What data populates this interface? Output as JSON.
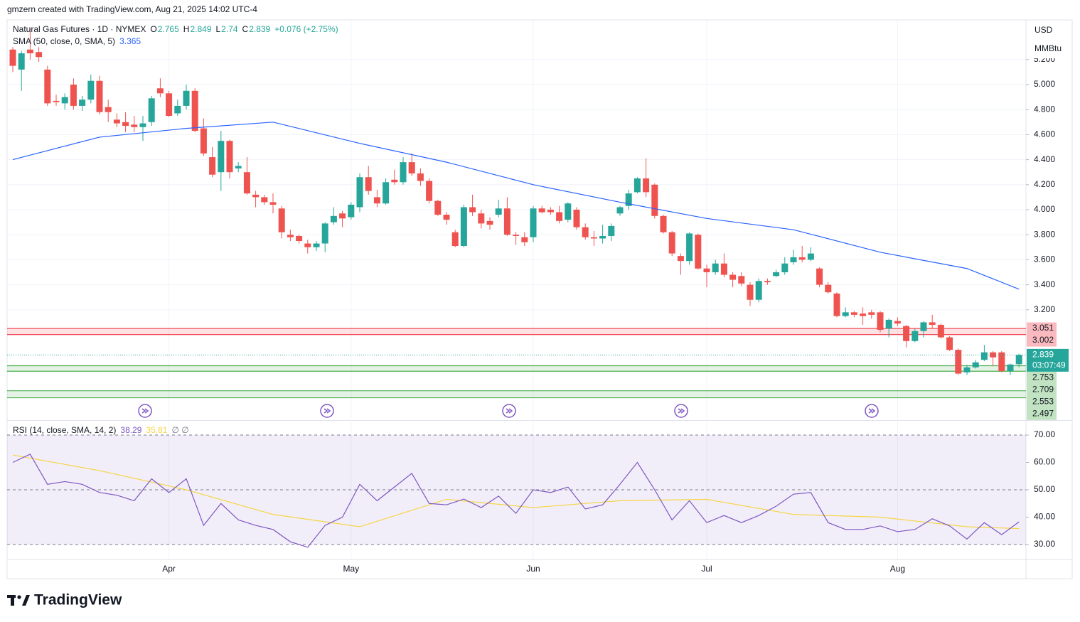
{
  "chart_data": {
    "type": "candlestick",
    "attribution": "gmzern created with TradingView.com, Aug 21, 2025 14:02 UTC-4",
    "title": "Natural Gas Futures · 1D · NYMEX",
    "ohlc_keys": [
      "O",
      "H",
      "L",
      "C"
    ],
    "change": "+0.076 (+2.75%)",
    "currency": "USD",
    "unit": "MMBtu",
    "countdown": "03:07:49",
    "logo": "TradingView",
    "up_color": "#26a69a",
    "down_color": "#ef5350",
    "categories": [
      null,
      null,
      null,
      null,
      null,
      null,
      null,
      null,
      null,
      null,
      null,
      null,
      null,
      null,
      null,
      null,
      null,
      null,
      "Apr",
      null,
      null,
      null,
      null,
      null,
      null,
      null,
      null,
      null,
      null,
      null,
      null,
      null,
      null,
      null,
      null,
      null,
      null,
      null,
      null,
      "May",
      null,
      null,
      null,
      null,
      null,
      null,
      null,
      null,
      null,
      null,
      null,
      null,
      null,
      null,
      null,
      null,
      null,
      null,
      null,
      null,
      "Jun",
      null,
      null,
      null,
      null,
      null,
      null,
      null,
      null,
      null,
      null,
      null,
      null,
      null,
      null,
      null,
      null,
      null,
      null,
      null,
      "Jul",
      null,
      null,
      null,
      null,
      null,
      null,
      null,
      null,
      null,
      null,
      null,
      null,
      null,
      null,
      null,
      null,
      null,
      null,
      null,
      null,
      null,
      "Aug",
      null,
      null,
      null,
      null,
      null,
      null,
      null,
      null,
      null,
      null,
      null,
      null,
      null,
      null
    ],
    "open": [
      5.28,
      5.12,
      5.28,
      5.26,
      5.12,
      4.87,
      4.85,
      5.0,
      4.83,
      4.88,
      5.03,
      4.82,
      4.72,
      4.7,
      4.68,
      4.66,
      4.7,
      4.97,
      4.93,
      4.77,
      4.83,
      4.95,
      4.65,
      4.42,
      4.3,
      4.55,
      4.33,
      4.3,
      4.12,
      4.1,
      4.06,
      4.01,
      3.8,
      3.79,
      3.73,
      3.7,
      3.73,
      3.9,
      3.97,
      3.94,
      4.02,
      4.26,
      4.1,
      4.05,
      4.24,
      4.22,
      4.38,
      4.29,
      4.23,
      4.07,
      3.96,
      3.82,
      3.71,
      4.02,
      3.97,
      3.91,
      3.96,
      4.01,
      3.8,
      3.78,
      3.78,
      4.01,
      4.0,
      3.98,
      3.92,
      4.0,
      3.86,
      3.78,
      3.77,
      3.79,
      3.97,
      4.03,
      4.14,
      4.25,
      4.2,
      3.95,
      3.82,
      3.63,
      3.59,
      3.8,
      3.53,
      3.5,
      3.57,
      3.48,
      3.47,
      3.4,
      3.28,
      3.43,
      3.47,
      3.5,
      3.58,
      3.62,
      3.6,
      3.53,
      3.4,
      3.33,
      3.15,
      3.18,
      3.17,
      3.18,
      3.18,
      3.05,
      3.11,
      3.07,
      2.95,
      3.03,
      3.1,
      3.08,
      2.98,
      2.88,
      2.7,
      2.74,
      2.8,
      2.86,
      2.86,
      2.71,
      2.765
    ],
    "high": [
      5.3,
      5.27,
      5.45,
      5.3,
      5.15,
      4.92,
      4.93,
      5.05,
      4.91,
      5.08,
      5.07,
      4.88,
      4.77,
      4.78,
      4.75,
      4.75,
      4.91,
      5.05,
      4.95,
      4.88,
      5.0,
      4.97,
      4.73,
      4.5,
      4.63,
      4.56,
      4.38,
      4.42,
      4.15,
      4.12,
      4.13,
      4.03,
      3.84,
      3.8,
      3.76,
      3.75,
      3.9,
      4.02,
      3.99,
      4.06,
      4.29,
      4.35,
      4.16,
      4.25,
      4.32,
      4.42,
      4.45,
      4.33,
      4.25,
      4.08,
      3.98,
      3.84,
      4.04,
      4.12,
      4.0,
      3.94,
      4.08,
      4.1,
      3.82,
      3.82,
      4.03,
      4.03,
      4.02,
      4.03,
      4.06,
      4.02,
      3.89,
      3.83,
      3.88,
      3.89,
      4.03,
      4.16,
      4.26,
      4.41,
      4.21,
      3.96,
      3.83,
      3.65,
      3.82,
      3.81,
      3.56,
      3.6,
      3.65,
      3.5,
      3.5,
      3.42,
      3.45,
      3.45,
      3.52,
      3.62,
      3.68,
      3.71,
      3.7,
      3.54,
      3.42,
      3.34,
      3.22,
      3.19,
      3.22,
      3.2,
      3.19,
      3.13,
      3.14,
      3.08,
      3.05,
      3.11,
      3.16,
      3.09,
      2.99,
      2.89,
      2.76,
      2.8,
      2.92,
      2.87,
      2.87,
      2.77,
      2.849
    ],
    "low": [
      5.1,
      4.95,
      5.2,
      5.18,
      4.83,
      4.83,
      4.8,
      4.8,
      4.79,
      4.85,
      4.76,
      4.7,
      4.66,
      4.62,
      4.62,
      4.55,
      4.67,
      4.9,
      4.74,
      4.75,
      4.8,
      4.62,
      4.43,
      4.26,
      4.15,
      4.25,
      4.3,
      4.12,
      4.02,
      4.04,
      3.97,
      3.77,
      3.75,
      3.73,
      3.65,
      3.67,
      3.66,
      3.88,
      3.86,
      3.92,
      3.98,
      4.12,
      4.02,
      4.04,
      4.2,
      4.2,
      4.27,
      4.19,
      4.05,
      3.95,
      3.88,
      3.7,
      3.7,
      3.95,
      3.85,
      3.84,
      3.94,
      3.79,
      3.72,
      3.71,
      3.74,
      3.97,
      3.96,
      3.89,
      3.9,
      3.84,
      3.76,
      3.71,
      3.73,
      3.75,
      3.95,
      4.0,
      4.13,
      4.1,
      3.93,
      3.81,
      3.63,
      3.48,
      3.56,
      3.52,
      3.38,
      3.48,
      3.46,
      3.38,
      3.39,
      3.23,
      3.26,
      3.4,
      3.46,
      3.48,
      3.56,
      3.58,
      3.59,
      3.38,
      3.33,
      3.14,
      3.14,
      3.14,
      3.08,
      3.13,
      3.02,
      2.98,
      3.07,
      2.9,
      2.94,
      2.98,
      3.05,
      2.97,
      2.87,
      2.68,
      2.68,
      2.73,
      2.79,
      2.75,
      2.7,
      2.68,
      2.74
    ],
    "close": [
      5.15,
      5.25,
      5.25,
      5.22,
      4.85,
      4.86,
      4.9,
      4.83,
      4.88,
      5.03,
      4.78,
      4.78,
      4.69,
      4.67,
      4.66,
      4.69,
      4.89,
      4.93,
      4.75,
      4.83,
      4.95,
      4.63,
      4.45,
      4.28,
      4.55,
      4.3,
      4.35,
      4.13,
      4.1,
      4.06,
      4.04,
      3.82,
      3.78,
      3.75,
      3.7,
      3.73,
      3.89,
      3.95,
      3.93,
      4.04,
      4.26,
      4.15,
      4.05,
      4.22,
      4.22,
      4.38,
      4.29,
      4.23,
      4.07,
      3.96,
      3.92,
      3.71,
      4.02,
      3.98,
      3.89,
      3.88,
      4.01,
      3.8,
      3.79,
      3.74,
      4.01,
      3.98,
      3.98,
      3.91,
      4.05,
      3.86,
      3.78,
      3.77,
      3.79,
      3.87,
      4.02,
      4.13,
      4.25,
      4.14,
      3.95,
      3.82,
      3.65,
      3.59,
      3.81,
      3.53,
      3.5,
      3.57,
      3.48,
      3.44,
      3.41,
      3.28,
      3.43,
      3.42,
      3.5,
      3.57,
      3.62,
      3.6,
      3.65,
      3.4,
      3.34,
      3.15,
      3.18,
      3.16,
      3.15,
      3.16,
      3.04,
      3.12,
      3.09,
      2.95,
      3.03,
      3.1,
      3.08,
      2.98,
      2.88,
      2.69,
      2.74,
      2.78,
      2.86,
      2.82,
      2.71,
      2.763,
      2.839
    ],
    "ylim": [
      2.324,
      5.517
    ],
    "yticks": [
      {
        "value": 3.2,
        "label": "3.200"
      },
      {
        "value": 3.4,
        "label": "3.400"
      },
      {
        "value": 3.6,
        "label": "3.600"
      },
      {
        "value": 3.8,
        "label": "3.800"
      },
      {
        "value": 4.0,
        "label": "4.000"
      },
      {
        "value": 4.2,
        "label": "4.200"
      },
      {
        "value": 4.4,
        "label": "4.400"
      },
      {
        "value": 4.6,
        "label": "4.600"
      },
      {
        "value": 4.8,
        "label": "4.800"
      },
      {
        "value": 5.0,
        "label": "5.000"
      },
      {
        "value": 5.2,
        "label": "5.200"
      }
    ],
    "grid": true,
    "sma": {
      "name": "SMA (50, close, 0, SMA, 5)",
      "color": "#2962ff",
      "x": [
        0,
        10,
        20,
        30,
        40,
        50,
        60,
        70,
        80,
        90,
        100,
        110,
        116
      ],
      "values": [
        4.4,
        4.58,
        4.65,
        4.7,
        4.53,
        4.38,
        4.2,
        4.06,
        3.93,
        3.84,
        3.66,
        3.53,
        3.365
      ]
    },
    "zones": [
      {
        "from": 3.002,
        "to": 3.051,
        "color": "#f23645"
      },
      {
        "from": 2.709,
        "to": 2.753,
        "color": "#4caf50"
      },
      {
        "from": 2.497,
        "to": 2.553,
        "color": "#4caf50"
      }
    ],
    "rsi": {
      "name": "RSI (14, close, SMA, 14, 2)",
      "color": "#7e57c2",
      "extra": "∅ ∅",
      "x": [
        0,
        2,
        4,
        6,
        8,
        10,
        12,
        14,
        16,
        18,
        20,
        22,
        24,
        26,
        28,
        30,
        32,
        34,
        36,
        38,
        40,
        42,
        44,
        46,
        48,
        50,
        52,
        54,
        56,
        58,
        60,
        62,
        64,
        66,
        68,
        70,
        72,
        74,
        76,
        78,
        80,
        82,
        84,
        86,
        88,
        90,
        92,
        94,
        96,
        98,
        100,
        102,
        104,
        106,
        108,
        110,
        112,
        114,
        116
      ],
      "values": [
        60,
        63,
        52,
        53,
        52,
        49,
        48,
        46,
        54,
        49,
        54,
        37,
        45,
        39,
        37,
        35.5,
        31,
        29,
        37,
        40,
        52,
        46,
        51,
        56,
        45,
        44.5,
        46.6,
        43.5,
        47.7,
        41.4,
        50,
        49,
        51,
        43,
        44.5,
        52,
        60,
        50,
        39,
        46,
        38,
        40.6,
        38,
        40.6,
        44,
        48.4,
        49,
        38,
        35.5,
        35.5,
        36.8,
        34.7,
        35.5,
        39.4,
        36.8,
        32,
        38,
        33.6,
        38.29
      ],
      "ma": {
        "color": "#f5d547",
        "x": [
          0,
          10,
          20,
          30,
          40,
          50,
          60,
          70,
          80,
          90,
          100,
          110,
          116
        ],
        "values": [
          62.7,
          57,
          50,
          41,
          36.5,
          46.5,
          43.5,
          46,
          46.5,
          41,
          40,
          36.5,
          35.81
        ]
      },
      "levels": [
        70,
        50,
        30
      ],
      "ylim": [
        24.55,
        75.19
      ],
      "yticks": [
        {
          "value": 30,
          "label": "30.00"
        },
        {
          "value": 40,
          "label": "40.00"
        },
        {
          "value": 50,
          "label": "50.00"
        },
        {
          "value": 60,
          "label": "60.00"
        },
        {
          "value": 70,
          "label": "70.00"
        }
      ]
    }
  }
}
